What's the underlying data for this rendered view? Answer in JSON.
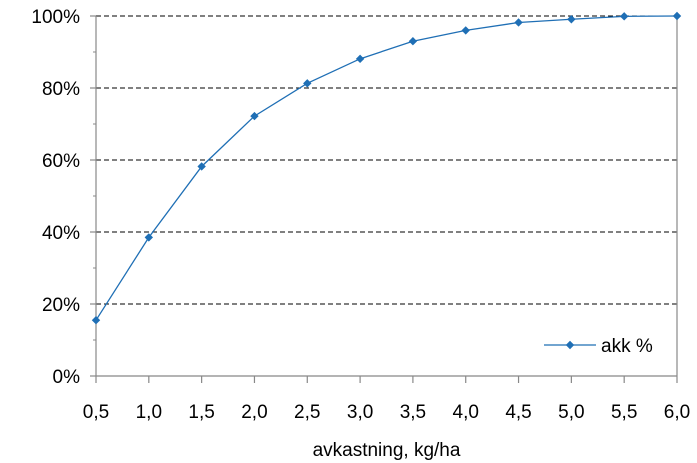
{
  "chart_data": {
    "type": "line",
    "x": [
      0.5,
      1.0,
      1.5,
      2.0,
      2.5,
      3.0,
      3.5,
      4.0,
      4.5,
      5.0,
      5.5,
      6.0
    ],
    "series": [
      {
        "name": "akk %",
        "values": [
          15.5,
          38.5,
          58.2,
          72.2,
          81.3,
          88.1,
          93.0,
          96.0,
          98.2,
          99.1,
          99.9,
          100.0
        ],
        "color": "#1f6fb5"
      }
    ],
    "x_tick_labels": [
      "0,5",
      "1,0",
      "1,5",
      "2,0",
      "2,5",
      "3,0",
      "3,5",
      "4,0",
      "4,5",
      "5,0",
      "5,5",
      "6,0"
    ],
    "y_tick_labels": [
      "0%",
      "20%",
      "40%",
      "60%",
      "80%",
      "100%"
    ],
    "y_ticks": [
      0,
      20,
      40,
      60,
      80,
      100
    ],
    "xlabel": "avkastning, kg/ha",
    "ylabel": "",
    "title": "",
    "xlim": [
      0.5,
      6.0
    ],
    "ylim": [
      0,
      100
    ],
    "grid": "horizontal-dashed",
    "legend_position": "bottom-right",
    "marker": "diamond"
  }
}
